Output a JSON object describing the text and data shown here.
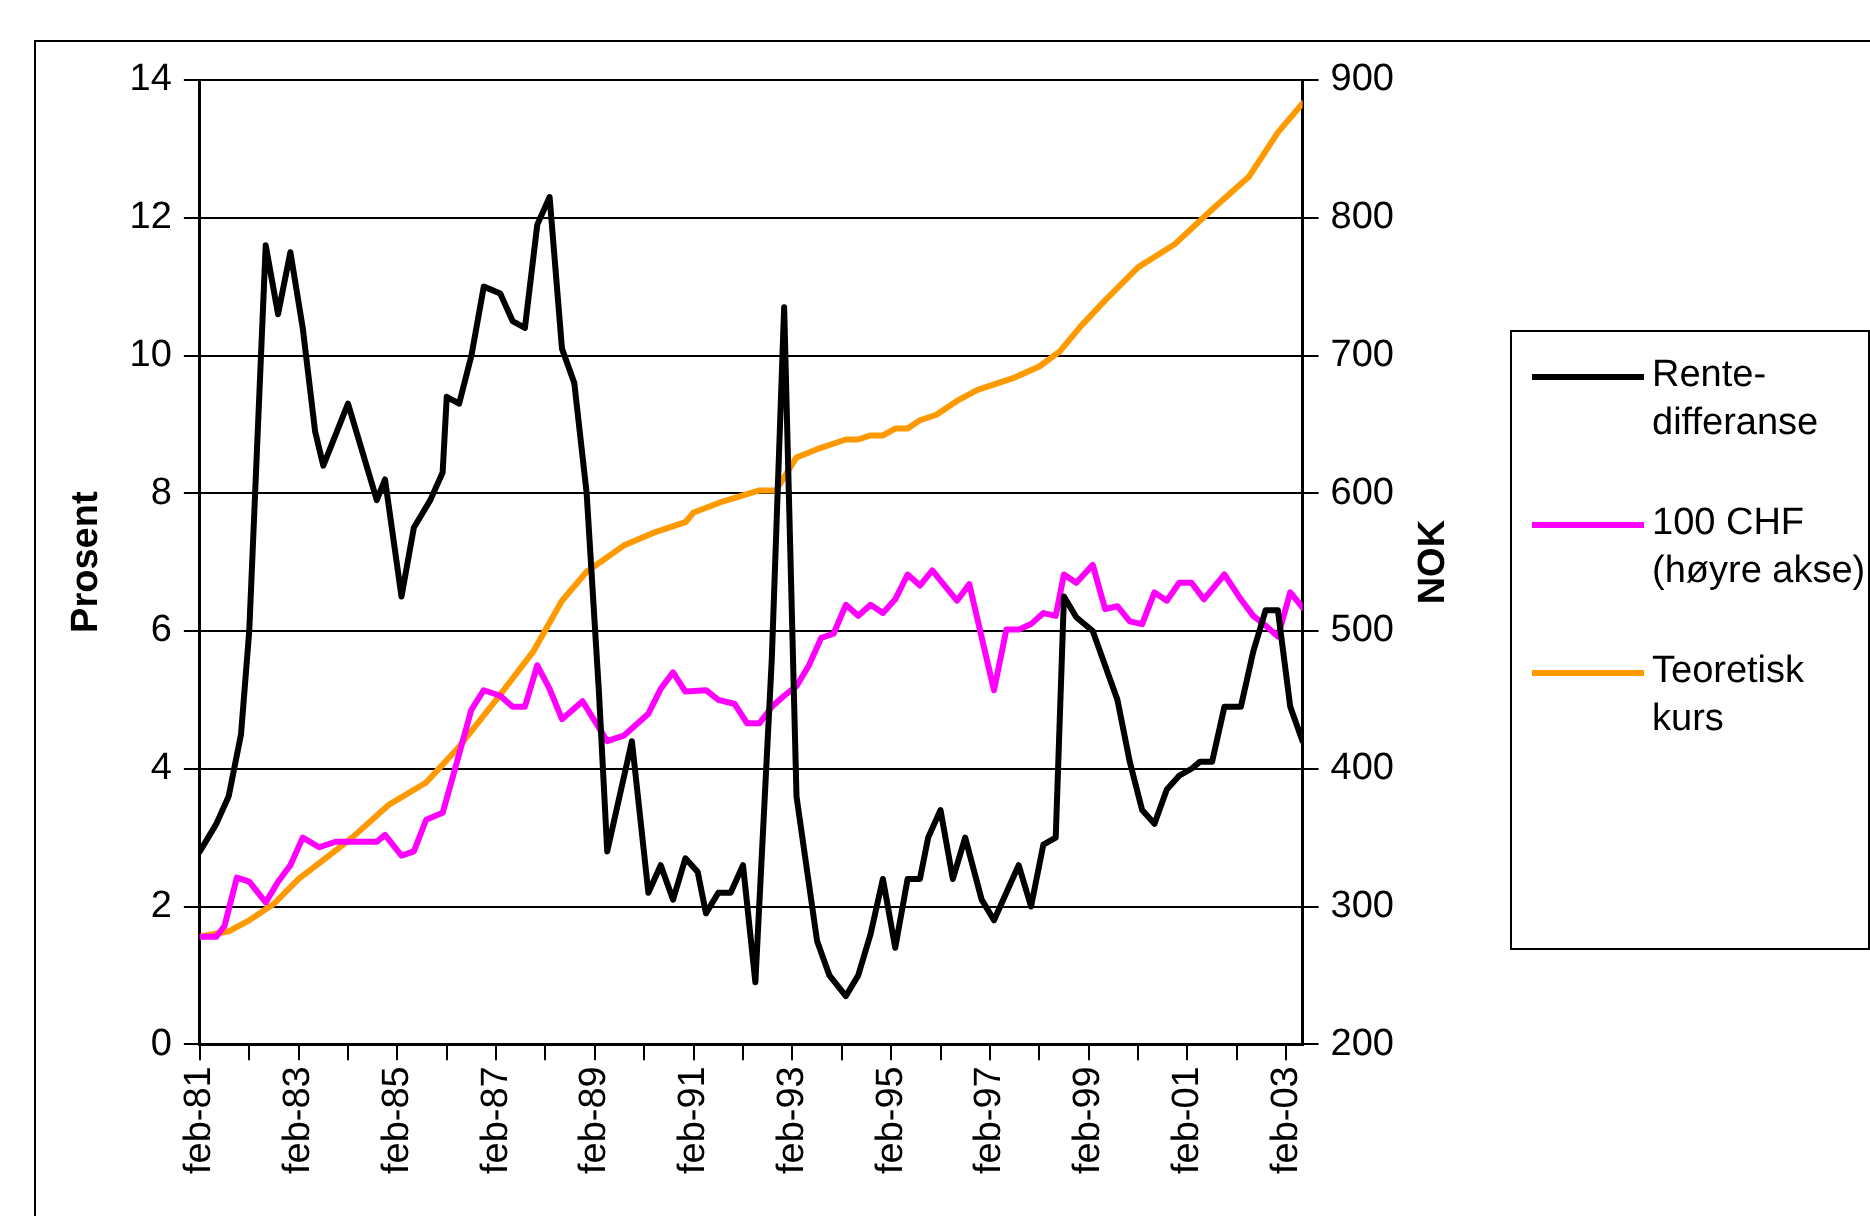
{
  "chart_data": {
    "type": "line",
    "ylabel": "Prosent",
    "y2label": "NOK",
    "xlim": [
      "1981-02",
      "2003-06"
    ],
    "xticks": [
      {
        "value": "1981-02",
        "label": "feb-81"
      },
      {
        "value": "1982-02",
        "label": null
      },
      {
        "value": "1983-02",
        "label": "feb-83"
      },
      {
        "value": "1984-02",
        "label": null
      },
      {
        "value": "1985-02",
        "label": "feb-85"
      },
      {
        "value": "1986-02",
        "label": null
      },
      {
        "value": "1987-02",
        "label": "feb-87"
      },
      {
        "value": "1988-02",
        "label": null
      },
      {
        "value": "1989-02",
        "label": "feb-89"
      },
      {
        "value": "1990-02",
        "label": null
      },
      {
        "value": "1991-02",
        "label": "feb-91"
      },
      {
        "value": "1992-02",
        "label": null
      },
      {
        "value": "1993-02",
        "label": "feb-93"
      },
      {
        "value": "1994-02",
        "label": null
      },
      {
        "value": "1995-02",
        "label": "feb-95"
      },
      {
        "value": "1996-02",
        "label": null
      },
      {
        "value": "1997-02",
        "label": "feb-97"
      },
      {
        "value": "1998-02",
        "label": null
      },
      {
        "value": "1999-02",
        "label": "feb-99"
      },
      {
        "value": "2000-02",
        "label": null
      },
      {
        "value": "2001-02",
        "label": "feb-01"
      },
      {
        "value": "2002-02",
        "label": null
      },
      {
        "value": "2003-02",
        "label": "feb-03"
      }
    ],
    "ylim": [
      0,
      14
    ],
    "yticks": [
      0,
      2,
      4,
      6,
      8,
      10,
      12,
      14
    ],
    "y2lim": [
      200,
      900
    ],
    "y2ticks": [
      200,
      300,
      400,
      500,
      600,
      700,
      800,
      900
    ],
    "grid": "y",
    "legend": "right",
    "series": [
      {
        "name": "Rente-differanse",
        "color": "#000000",
        "x": [
          "1981-02",
          "1981-06",
          "1981-09",
          "1981-12",
          "1982-02",
          "1982-06",
          "1982-09",
          "1982-12",
          "1983-03",
          "1983-06",
          "1983-08",
          "1984-02",
          "1984-09",
          "1984-11",
          "1985-03",
          "1985-06",
          "1985-10",
          "1986-01",
          "1986-02",
          "1986-05",
          "1986-08",
          "1986-11",
          "1987-03",
          "1987-06",
          "1987-09",
          "1987-12",
          "1988-03",
          "1988-06",
          "1988-09",
          "1988-12",
          "1989-03",
          "1989-05",
          "1989-11",
          "1990-03",
          "1990-06",
          "1990-09",
          "1990-12",
          "1991-03",
          "1991-05",
          "1991-08",
          "1991-11",
          "1992-02",
          "1992-05",
          "1992-09",
          "1992-12",
          "1993-03",
          "1993-08",
          "1993-11",
          "1994-03",
          "1994-06",
          "1994-09",
          "1994-12",
          "1995-03",
          "1995-06",
          "1995-09",
          "1995-11",
          "1996-02",
          "1996-05",
          "1996-08",
          "1996-12",
          "1997-03",
          "1997-06",
          "1997-09",
          "1997-12",
          "1998-03",
          "1998-06",
          "1998-08",
          "1998-11",
          "1999-03",
          "1999-06",
          "1999-09",
          "1999-12",
          "2000-03",
          "2000-06",
          "2000-09",
          "2000-12",
          "2001-03",
          "2001-05",
          "2001-08",
          "2001-11",
          "2002-03",
          "2002-06",
          "2002-09",
          "2002-12",
          "2003-03",
          "2003-06"
        ],
        "values": [
          2.8,
          3.2,
          3.6,
          4.5,
          6.0,
          11.6,
          10.6,
          11.5,
          10.4,
          8.9,
          8.4,
          9.3,
          7.9,
          8.2,
          6.5,
          7.5,
          7.9,
          8.3,
          9.4,
          9.3,
          10.0,
          11.0,
          10.9,
          10.5,
          10.4,
          11.9,
          12.3,
          10.1,
          9.6,
          8.0,
          5.1,
          2.8,
          4.4,
          2.2,
          2.6,
          2.1,
          2.7,
          2.5,
          1.9,
          2.2,
          2.2,
          2.6,
          0.9,
          5.6,
          10.7,
          3.6,
          1.5,
          1.0,
          0.7,
          1.0,
          1.6,
          2.4,
          1.4,
          2.4,
          2.4,
          3.0,
          3.4,
          2.4,
          3.0,
          2.1,
          1.8,
          2.2,
          2.6,
          2.0,
          2.9,
          3.0,
          6.5,
          6.2,
          6.0,
          5.5,
          5.0,
          4.1,
          3.4,
          3.2,
          3.7,
          3.9,
          4.0,
          4.1,
          4.1,
          4.9,
          4.9,
          5.7,
          6.3,
          6.3,
          4.9,
          4.4
        ]
      },
      {
        "name": "100 CHF (høyre akse)",
        "color": "#ff00ff",
        "axis": "y2",
        "x": [
          "1981-02",
          "1981-06",
          "1981-08",
          "1981-11",
          "1982-02",
          "1982-06",
          "1982-09",
          "1982-12",
          "1983-03",
          "1983-07",
          "1983-11",
          "1984-05",
          "1984-09",
          "1984-11",
          "1985-03",
          "1985-06",
          "1985-09",
          "1986-01",
          "1986-03",
          "1986-08",
          "1986-11",
          "1987-03",
          "1987-06",
          "1987-09",
          "1987-12",
          "1988-03",
          "1988-06",
          "1988-11",
          "1989-05",
          "1989-09",
          "1990-03",
          "1990-06",
          "1990-09",
          "1990-12",
          "1991-05",
          "1991-08",
          "1991-12",
          "1992-03",
          "1992-06",
          "1992-09",
          "1992-12",
          "1993-03",
          "1993-06",
          "1993-09",
          "1993-12",
          "1994-03",
          "1994-06",
          "1994-09",
          "1994-12",
          "1995-03",
          "1995-06",
          "1995-09",
          "1995-12",
          "1996-03",
          "1996-06",
          "1996-09",
          "1997-03",
          "1997-06",
          "1997-09",
          "1997-12",
          "1998-03",
          "1998-06",
          "1998-08",
          "1998-11",
          "1999-03",
          "1999-06",
          "1999-09",
          "1999-12",
          "2000-03",
          "2000-06",
          "2000-09",
          "2000-12",
          "2001-03",
          "2001-06",
          "2001-11",
          "2002-03",
          "2002-06",
          "2002-09",
          "2002-12",
          "2003-03",
          "2003-06"
        ],
        "values": [
          278,
          278,
          286,
          321,
          318,
          303,
          318,
          330,
          350,
          343,
          347,
          347,
          347,
          352,
          337,
          340,
          363,
          368,
          389,
          443,
          457,
          453,
          445,
          445,
          475,
          458,
          436,
          449,
          420,
          424,
          440,
          458,
          470,
          456,
          457,
          450,
          447,
          433,
          433,
          445,
          453,
          460,
          475,
          495,
          498,
          519,
          511,
          519,
          513,
          523,
          541,
          533,
          544,
          533,
          522,
          534,
          457,
          501,
          501,
          505,
          513,
          511,
          541,
          535,
          548,
          516,
          518,
          507,
          505,
          528,
          522,
          535,
          535,
          523,
          541,
          523,
          511,
          504,
          496,
          528,
          517
        ]
      },
      {
        "name": "Teoretisk kurs",
        "color": "#ff9900",
        "axis": "y2",
        "x": [
          "1981-02",
          "1981-09",
          "1982-02",
          "1982-08",
          "1983-02",
          "1983-09",
          "1984-03",
          "1984-12",
          "1985-09",
          "1986-05",
          "1987-02",
          "1987-11",
          "1988-06",
          "1988-12",
          "1989-09",
          "1990-04",
          "1990-12",
          "1991-02",
          "1991-09",
          "1992-06",
          "1992-10",
          "1993-03",
          "1993-08",
          "1994-03",
          "1994-06",
          "1994-09",
          "1994-12",
          "1995-03",
          "1995-06",
          "1995-09",
          "1996-01",
          "1996-06",
          "1996-11",
          "1997-08",
          "1998-02",
          "1998-07",
          "1998-12",
          "1999-06",
          "2000-02",
          "2000-11",
          "2001-08",
          "2002-05",
          "2002-12",
          "2003-06"
        ],
        "values": [
          278,
          282,
          290,
          302,
          320,
          336,
          350,
          374,
          390,
          416,
          450,
          485,
          522,
          543,
          562,
          571,
          579,
          586,
          594,
          602,
          602,
          626,
          632,
          639,
          639,
          642,
          642,
          647,
          647,
          653,
          657,
          667,
          675,
          684,
          692,
          703,
          721,
          740,
          764,
          781,
          806,
          830,
          862,
          883
        ]
      }
    ]
  }
}
